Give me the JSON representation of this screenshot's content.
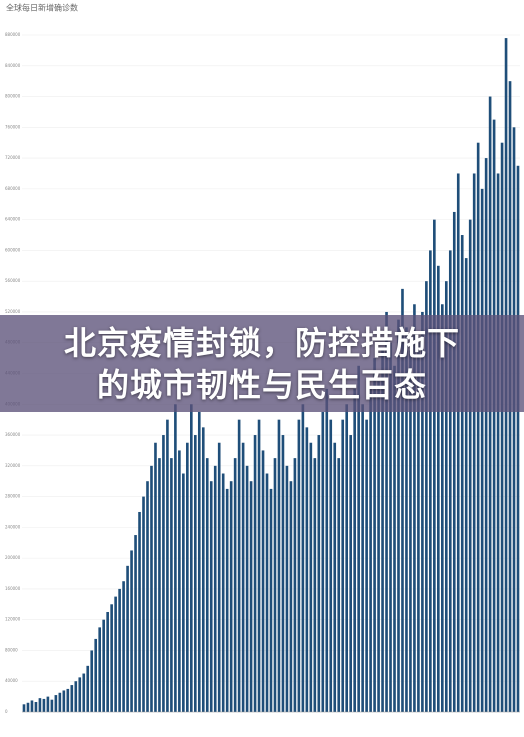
{
  "chart_data": {
    "type": "bar",
    "title": "全球每日新增确诊数",
    "headline": "北京疫情封锁，防控措施下的城市韧性与民生百态",
    "color": "#1f4e79",
    "grid": true,
    "ylim": [
      0,
      920000
    ],
    "yticks": [
      0,
      40000,
      80000,
      120000,
      160000,
      200000,
      240000,
      280000,
      320000,
      360000,
      400000,
      440000,
      480000,
      520000,
      560000,
      600000,
      640000,
      680000,
      720000,
      760000,
      800000,
      840000,
      880000
    ],
    "categories": [
      null,
      null,
      null,
      null,
      null,
      null,
      null,
      null,
      null,
      null,
      null,
      null,
      null,
      null,
      null,
      null,
      null,
      null,
      null,
      null,
      null,
      null,
      null,
      null,
      null,
      null,
      null,
      null,
      null,
      null,
      null,
      null,
      null,
      null,
      null,
      null,
      null,
      null,
      null,
      null,
      null,
      null,
      null,
      null,
      null,
      null,
      null,
      null,
      null,
      null,
      null,
      null,
      null,
      null,
      null,
      null,
      null,
      null,
      null,
      null,
      null,
      null,
      null,
      null,
      null,
      null,
      null,
      null,
      null,
      null,
      null,
      null,
      null,
      null,
      null,
      null,
      null,
      null,
      null,
      null,
      null,
      null,
      null,
      null,
      null,
      null,
      null,
      null,
      null,
      null,
      null,
      null,
      null,
      null,
      null,
      null,
      null,
      null,
      null,
      null,
      null,
      null,
      null,
      null,
      null,
      null,
      null,
      null,
      null,
      null,
      null,
      null,
      null,
      null,
      null,
      null,
      null,
      null,
      null,
      null,
      null,
      null,
      null,
      null,
      null
    ],
    "values": [
      10000,
      12000,
      15000,
      13000,
      18000,
      17000,
      20000,
      16000,
      22000,
      25000,
      28000,
      30000,
      35000,
      40000,
      45000,
      50000,
      60000,
      80000,
      95000,
      110000,
      120000,
      130000,
      140000,
      150000,
      160000,
      170000,
      190000,
      210000,
      230000,
      260000,
      280000,
      300000,
      320000,
      350000,
      330000,
      360000,
      380000,
      330000,
      400000,
      340000,
      310000,
      350000,
      400000,
      360000,
      390000,
      370000,
      330000,
      300000,
      320000,
      350000,
      310000,
      290000,
      300000,
      330000,
      380000,
      350000,
      320000,
      300000,
      360000,
      380000,
      340000,
      310000,
      290000,
      330000,
      380000,
      360000,
      320000,
      300000,
      330000,
      380000,
      400000,
      370000,
      350000,
      330000,
      360000,
      390000,
      420000,
      380000,
      350000,
      330000,
      380000,
      400000,
      360000,
      420000,
      450000,
      400000,
      380000,
      420000,
      460000,
      430000,
      470000,
      520000,
      480000,
      450000,
      510000,
      550000,
      500000,
      470000,
      530000,
      480000,
      520000,
      560000,
      600000,
      640000,
      580000,
      530000,
      560000,
      600000,
      650000,
      700000,
      620000,
      590000,
      640000,
      700000,
      740000,
      680000,
      720000,
      800000,
      770000,
      700000,
      740000,
      876000,
      820000,
      760000,
      710000
    ]
  }
}
